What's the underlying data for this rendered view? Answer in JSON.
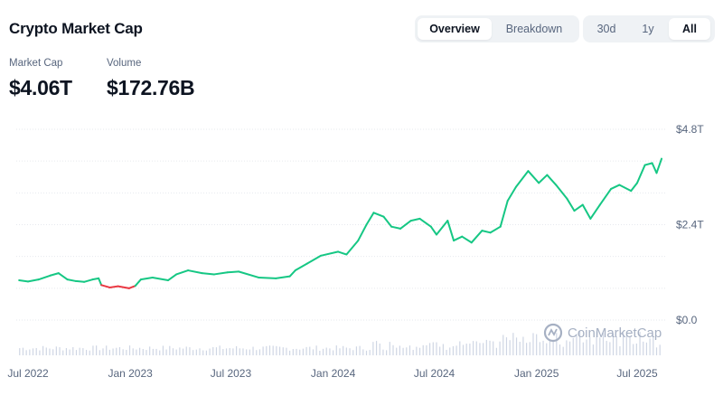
{
  "header": {
    "title": "Crypto Market Cap"
  },
  "view_tabs": [
    {
      "label": "Overview",
      "active": true
    },
    {
      "label": "Breakdown",
      "active": false
    }
  ],
  "range_tabs": [
    {
      "label": "30d",
      "active": false
    },
    {
      "label": "1y",
      "active": false
    },
    {
      "label": "All",
      "active": true
    }
  ],
  "stats": {
    "market_cap": {
      "label": "Market Cap",
      "value": "$4.06T"
    },
    "volume": {
      "label": "Volume",
      "value": "$172.76B"
    }
  },
  "watermark": "CoinMarketCap",
  "colors": {
    "up": "#16c784",
    "down": "#ea3943",
    "grid": "#e6e9ee",
    "volume": "#cfd6e4"
  },
  "chart_data": {
    "type": "line",
    "title": "",
    "y_axis": {
      "ticks": [
        "$4.8T",
        "$2.4T",
        "$0.0"
      ],
      "tick_values": [
        4.8,
        2.4,
        0
      ],
      "unit": "T",
      "ylim": [
        0,
        4.8
      ]
    },
    "x_axis": {
      "tick_labels": [
        "Jul 2022",
        "Jan 2023",
        "Jul 2023",
        "Jan 2024",
        "Jul 2024",
        "Jan 2025",
        "Jul 2025"
      ],
      "tick_values": [
        "2022-07-01",
        "2023-01-01",
        "2023-07-01",
        "2024-01-01",
        "2024-07-01",
        "2025-01-01",
        "2025-07-01"
      ]
    },
    "grid": true,
    "series": [
      {
        "values_unit": "trillion USD",
        "points": [
          [
            "2022-06-15",
            1.0
          ],
          [
            "2022-07-01",
            0.97
          ],
          [
            "2022-07-20",
            1.02
          ],
          [
            "2022-08-10",
            1.12
          ],
          [
            "2022-08-25",
            1.18
          ],
          [
            "2022-09-10",
            1.02
          ],
          [
            "2022-09-25",
            0.98
          ],
          [
            "2022-10-10",
            0.96
          ],
          [
            "2022-10-25",
            1.02
          ],
          [
            "2022-11-05",
            1.05
          ],
          [
            "2022-11-10",
            0.88
          ],
          [
            "2022-11-25",
            0.82
          ],
          [
            "2022-12-10",
            0.85
          ],
          [
            "2022-12-30",
            0.8
          ],
          [
            "2023-01-10",
            0.86
          ],
          [
            "2023-01-20",
            1.02
          ],
          [
            "2023-02-10",
            1.07
          ],
          [
            "2023-03-10",
            1.0
          ],
          [
            "2023-03-25",
            1.15
          ],
          [
            "2023-04-15",
            1.25
          ],
          [
            "2023-05-10",
            1.18
          ],
          [
            "2023-06-01",
            1.15
          ],
          [
            "2023-06-25",
            1.2
          ],
          [
            "2023-07-15",
            1.22
          ],
          [
            "2023-08-20",
            1.07
          ],
          [
            "2023-09-20",
            1.05
          ],
          [
            "2023-10-15",
            1.1
          ],
          [
            "2023-10-25",
            1.25
          ],
          [
            "2023-11-15",
            1.42
          ],
          [
            "2023-12-10",
            1.62
          ],
          [
            "2024-01-10",
            1.72
          ],
          [
            "2024-01-25",
            1.65
          ],
          [
            "2024-02-15",
            2.0
          ],
          [
            "2024-03-01",
            2.4
          ],
          [
            "2024-03-14",
            2.7
          ],
          [
            "2024-04-01",
            2.6
          ],
          [
            "2024-04-15",
            2.35
          ],
          [
            "2024-05-01",
            2.3
          ],
          [
            "2024-05-20",
            2.5
          ],
          [
            "2024-06-05",
            2.55
          ],
          [
            "2024-06-25",
            2.35
          ],
          [
            "2024-07-05",
            2.15
          ],
          [
            "2024-07-25",
            2.5
          ],
          [
            "2024-08-05",
            2.0
          ],
          [
            "2024-08-20",
            2.1
          ],
          [
            "2024-09-06",
            1.95
          ],
          [
            "2024-09-25",
            2.25
          ],
          [
            "2024-10-10",
            2.2
          ],
          [
            "2024-10-28",
            2.35
          ],
          [
            "2024-11-10",
            3.0
          ],
          [
            "2024-11-25",
            3.35
          ],
          [
            "2024-12-17",
            3.75
          ],
          [
            "2025-01-05",
            3.45
          ],
          [
            "2025-01-20",
            3.65
          ],
          [
            "2025-02-05",
            3.4
          ],
          [
            "2025-02-25",
            3.05
          ],
          [
            "2025-03-10",
            2.75
          ],
          [
            "2025-03-25",
            2.9
          ],
          [
            "2025-04-08",
            2.55
          ],
          [
            "2025-04-25",
            2.9
          ],
          [
            "2025-05-15",
            3.3
          ],
          [
            "2025-05-30",
            3.4
          ],
          [
            "2025-06-20",
            3.25
          ],
          [
            "2025-07-01",
            3.45
          ],
          [
            "2025-07-15",
            3.9
          ],
          [
            "2025-07-28",
            3.95
          ],
          [
            "2025-08-05",
            3.7
          ],
          [
            "2025-08-14",
            4.06
          ]
        ]
      }
    ],
    "volume_bars": true
  }
}
